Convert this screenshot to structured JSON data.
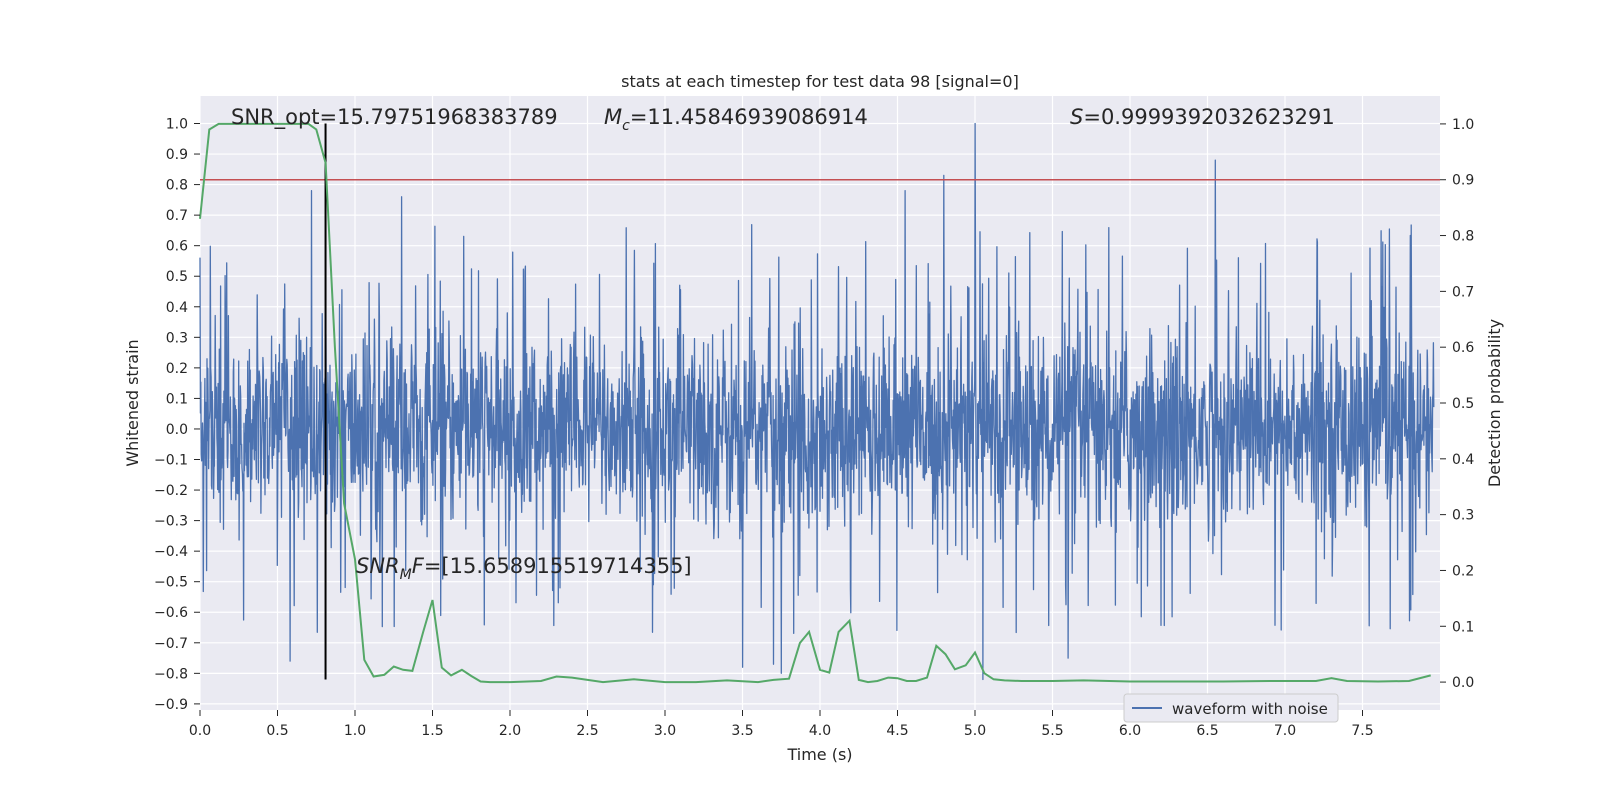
{
  "chart_data": {
    "type": "line",
    "title": "stats at each timestep for test data 98 [signal=0]",
    "xlabel": "Time (s)",
    "ylabel": "Whitened strain",
    "y2label": "Detection probability",
    "xlim": [
      0.0,
      8.0
    ],
    "ylim": [
      -0.92,
      1.09
    ],
    "y2lim": [
      -0.05,
      1.05
    ],
    "x_ticks": [
      "0.0",
      "0.5",
      "1.0",
      "1.5",
      "2.0",
      "2.5",
      "3.0",
      "3.5",
      "4.0",
      "4.5",
      "5.0",
      "5.5",
      "6.0",
      "6.5",
      "7.0",
      "7.5"
    ],
    "y_ticks": [
      "1.0",
      "0.9",
      "0.8",
      "0.7",
      "0.6",
      "0.5",
      "0.4",
      "0.3",
      "0.2",
      "0.1",
      "0.0",
      "−0.1",
      "−0.2",
      "−0.3",
      "−0.4",
      "−0.5",
      "−0.6",
      "−0.7",
      "−0.8",
      "−0.9"
    ],
    "y2_ticks": [
      "1.0",
      "0.9",
      "0.8",
      "0.7",
      "0.6",
      "0.5",
      "0.4",
      "0.3",
      "0.2",
      "0.1",
      "0.0"
    ],
    "grid": true,
    "legend": {
      "placement": "bottom-right",
      "entries": [
        "waveform with noise"
      ]
    },
    "annotations": {
      "snr_opt": "SNR_opt=15.79751968383789",
      "mc_symbol": "M",
      "mc_sub": "c",
      "mc_value": "=11.45846939086914",
      "s_symbol": "S",
      "s_value": "=0.9999392032623291",
      "snr_mf_symbol": "SNR",
      "snr_mf_sub": "M",
      "snr_mf_tail": "F",
      "snr_mf_value": "=[15.658915519714355]"
    },
    "threshold_line": {
      "y2": 0.9
    },
    "marker_line": {
      "x": 0.81,
      "y_from": -0.82,
      "y_to": 1.0
    },
    "series": [
      {
        "name": "waveform with noise",
        "axis": "left",
        "style": "dense noise, approx. symmetric about 0 with typical envelope ±0.45 and spikes to 1.0",
        "peaks": [
          {
            "x": 0.72,
            "y": 0.78
          },
          {
            "x": 1.3,
            "y": 0.76
          },
          {
            "x": 4.55,
            "y": 0.78
          },
          {
            "x": 4.8,
            "y": 0.83
          },
          {
            "x": 5.0,
            "y": 1.0
          },
          {
            "x": 6.55,
            "y": 0.88
          },
          {
            "x": 0.58,
            "y": -0.76
          },
          {
            "x": 3.5,
            "y": -0.78
          },
          {
            "x": 3.7,
            "y": -0.77
          },
          {
            "x": 3.75,
            "y": -0.8
          },
          {
            "x": 5.05,
            "y": -0.82
          },
          {
            "x": 5.6,
            "y": -0.75
          }
        ]
      },
      {
        "name": "",
        "axis": "right",
        "color": "#55a868",
        "x": [
          0.0,
          0.06,
          0.12,
          0.2,
          0.3,
          0.4,
          0.5,
          0.6,
          0.7,
          0.75,
          0.81,
          0.87,
          0.93,
          1.0,
          1.06,
          1.12,
          1.19,
          1.25,
          1.31,
          1.37,
          1.44,
          1.5,
          1.56,
          1.62,
          1.69,
          1.75,
          1.81,
          1.87,
          1.94,
          2.0,
          2.2,
          2.3,
          2.4,
          2.6,
          2.8,
          3.0,
          3.2,
          3.4,
          3.6,
          3.7,
          3.8,
          3.87,
          3.93,
          4.0,
          4.06,
          4.12,
          4.19,
          4.25,
          4.31,
          4.37,
          4.44,
          4.5,
          4.56,
          4.62,
          4.69,
          4.75,
          4.81,
          4.87,
          4.94,
          5.0,
          5.06,
          5.12,
          5.19,
          5.3,
          5.5,
          5.7,
          6.0,
          6.3,
          6.6,
          6.9,
          7.2,
          7.3,
          7.4,
          7.6,
          7.8,
          7.94
        ],
        "values": [
          0.83,
          0.99,
          1.0,
          1.0,
          1.0,
          1.0,
          1.0,
          1.0,
          1.0,
          0.99,
          0.93,
          0.6,
          0.32,
          0.22,
          0.04,
          0.01,
          0.013,
          0.028,
          0.022,
          0.02,
          0.09,
          0.147,
          0.026,
          0.012,
          0.022,
          0.011,
          0.001,
          0.0,
          0.0,
          0.0,
          0.002,
          0.01,
          0.008,
          0.0,
          0.005,
          0.0,
          0.0,
          0.003,
          0.0,
          0.004,
          0.006,
          0.07,
          0.09,
          0.022,
          0.017,
          0.09,
          0.11,
          0.004,
          0.0,
          0.002,
          0.008,
          0.007,
          0.002,
          0.002,
          0.008,
          0.065,
          0.05,
          0.023,
          0.03,
          0.053,
          0.016,
          0.005,
          0.003,
          0.002,
          0.002,
          0.003,
          0.001,
          0.001,
          0.001,
          0.002,
          0.002,
          0.007,
          0.002,
          0.001,
          0.002,
          0.012
        ]
      }
    ]
  }
}
